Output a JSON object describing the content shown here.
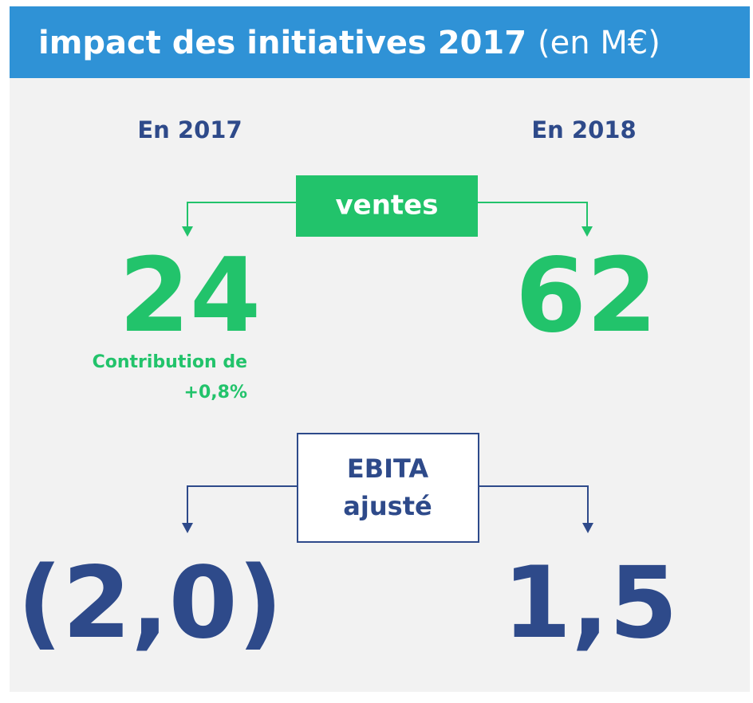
{
  "header": {
    "title": "impact des initiatives 2017",
    "unit": "(en M€)"
  },
  "columns": [
    "En 2017",
    "En 2018"
  ],
  "sales": {
    "label": "ventes",
    "values": [
      "24",
      "62"
    ],
    "note": {
      "line1": "Contribution de",
      "line2": "+0,8%"
    }
  },
  "ebita": {
    "label": [
      "EBITA",
      "ajusté"
    ],
    "values": [
      "(2,0)",
      "1,5"
    ]
  }
}
